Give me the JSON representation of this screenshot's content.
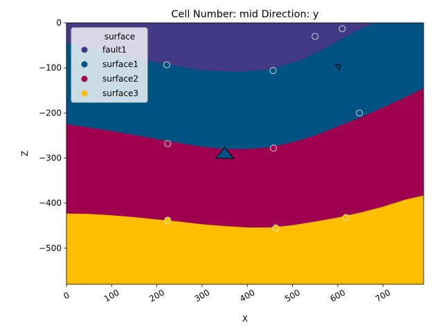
{
  "chart_data": {
    "type": "area",
    "title": "Cell Number: mid Direction: y",
    "xlabel": "X",
    "ylabel": "Z",
    "xlim": [
      0,
      790
    ],
    "ylim": [
      -580,
      0
    ],
    "x_ticks": [
      0,
      100,
      200,
      300,
      400,
      500,
      600,
      700
    ],
    "y_ticks": [
      0,
      -100,
      -200,
      -300,
      -400,
      -500
    ],
    "x_tick_rotation": 30,
    "legend": {
      "title": "surface",
      "location": "upper-left",
      "entries": [
        {
          "name": "fault1",
          "color": "#443983"
        },
        {
          "name": "surface1",
          "color": "#005282"
        },
        {
          "name": "surface2",
          "color": "#9f004f"
        },
        {
          "name": "surface3",
          "color": "#ffbe00"
        }
      ]
    },
    "layers": [
      {
        "name": "fault1",
        "color": "#443983",
        "lower_boundary": [
          [
            0,
            -45
          ],
          [
            100,
            -68
          ],
          [
            200,
            -88
          ],
          [
            300,
            -105
          ],
          [
            380,
            -109
          ],
          [
            450,
            -103
          ],
          [
            520,
            -82
          ],
          [
            580,
            -52
          ],
          [
            640,
            -18
          ],
          [
            680,
            0
          ]
        ]
      },
      {
        "name": "surface1",
        "color": "#005282",
        "lower_boundary": [
          [
            0,
            -225
          ],
          [
            100,
            -240
          ],
          [
            200,
            -258
          ],
          [
            300,
            -275
          ],
          [
            350,
            -280
          ],
          [
            400,
            -280
          ],
          [
            450,
            -276
          ],
          [
            500,
            -265
          ],
          [
            550,
            -250
          ],
          [
            600,
            -230
          ],
          [
            650,
            -210
          ],
          [
            700,
            -188
          ],
          [
            750,
            -165
          ],
          [
            790,
            -145
          ]
        ]
      },
      {
        "name": "surface2",
        "color": "#9f004f",
        "lower_boundary": [
          [
            0,
            -423
          ],
          [
            50,
            -424
          ],
          [
            100,
            -427
          ],
          [
            150,
            -431
          ],
          [
            200,
            -436
          ],
          [
            250,
            -441
          ],
          [
            300,
            -447
          ],
          [
            350,
            -451
          ],
          [
            400,
            -454
          ],
          [
            450,
            -454
          ],
          [
            500,
            -449
          ],
          [
            550,
            -441
          ],
          [
            600,
            -432
          ],
          [
            650,
            -421
          ],
          [
            700,
            -408
          ],
          [
            750,
            -392
          ],
          [
            790,
            -383
          ]
        ]
      },
      {
        "name": "surface3",
        "color": "#ffbe00",
        "lower_boundary": []
      }
    ],
    "points": [
      {
        "series": "fault1",
        "x": 550,
        "y": -30
      },
      {
        "series": "fault1",
        "x": 610,
        "y": -13
      },
      {
        "series": "surface1",
        "x": 222,
        "y": -93
      },
      {
        "series": "surface1",
        "x": 457,
        "y": -106
      },
      {
        "series": "surface1",
        "x": 648,
        "y": -200
      },
      {
        "series": "surface2",
        "x": 224,
        "y": -268
      },
      {
        "series": "surface2",
        "x": 458,
        "y": -278
      },
      {
        "series": "surface3",
        "x": 224,
        "y": -438
      },
      {
        "series": "surface3",
        "x": 463,
        "y": -455
      },
      {
        "series": "surface3",
        "x": 618,
        "y": -432
      }
    ],
    "orientation_markers": [
      {
        "x": 350,
        "y": -290,
        "shape": "large-triangle"
      },
      {
        "x": 600,
        "y": -97,
        "shape": "small-triangle"
      }
    ]
  }
}
